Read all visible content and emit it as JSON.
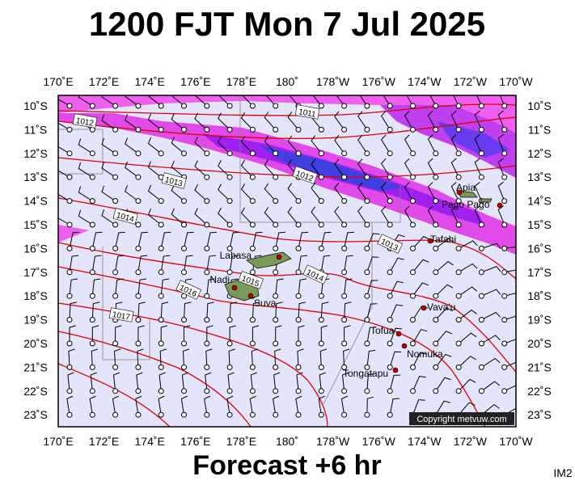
{
  "header": {
    "title": "1200 FJT Mon 7 Jul 2025"
  },
  "map": {
    "lon_labels": [
      "170˚E",
      "172˚E",
      "174˚E",
      "176˚E",
      "178˚E",
      "180˚",
      "178˚W",
      "176˚W",
      "174˚W",
      "172˚W",
      "170˚W"
    ],
    "lat_labels": [
      "10˚S",
      "11˚S",
      "12˚S",
      "13˚S",
      "14˚S",
      "15˚S",
      "16˚S",
      "17˚S",
      "18˚S",
      "19˚S",
      "20˚S",
      "21˚S",
      "22˚S",
      "23˚S"
    ],
    "places": [
      "Labasa",
      "Nadi",
      "Suva",
      "Apia",
      "Pago Pago",
      "Tafahi",
      "Vava'u",
      "Tofua",
      "Nomuka",
      "Tongatapu"
    ],
    "isobar_labels": [
      "1011",
      "1012",
      "1013",
      "1012",
      "1014",
      "1013",
      "1014",
      "1015",
      "1016",
      "1017"
    ],
    "copyright": "Copyright metvuw.com"
  },
  "footer": {
    "forecast": "Forecast +6 hr",
    "image_id": "IM2"
  }
}
